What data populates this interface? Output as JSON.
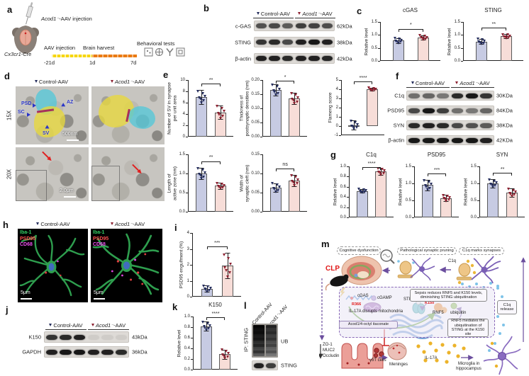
{
  "colors": {
    "control_fill": "#c7cbe3",
    "acod1_fill": "#f7ddd8",
    "control_marker": "#232c5c",
    "acod1_marker": "#8c2030"
  },
  "groups": {
    "control": "Control-AAV",
    "acod1_italic": "Acod1⁻",
    "acod1_rest": "-AAV"
  },
  "panel_a": {
    "letter": "a",
    "injection_italic": "Acod1⁻",
    "injection_rest": "-AAV injection",
    "cx3cr1_italic": "Cx3cr1",
    "cx3cr1_rest": "-Cre",
    "timeline_events": [
      "AAV injection",
      "Brain harvest",
      "Behavioral tests"
    ],
    "timeline_times": [
      "-21d",
      "1d",
      "7d"
    ]
  },
  "panel_b": {
    "letter": "b",
    "rows": [
      {
        "label": "c-GAS",
        "kda": "62kDa"
      },
      {
        "label": "STING",
        "kda": "38kDa"
      },
      {
        "label": "β-actin",
        "kda": "42kDa"
      }
    ]
  },
  "panel_c": {
    "letter": "c"
  },
  "panel_d": {
    "letter": "d",
    "row_labels": [
      "15X",
      "20X"
    ],
    "annotations": {
      "psd": "PSD",
      "az": "AZ",
      "sc": "SC",
      "sv": "SV"
    },
    "scale_15x": "500nm",
    "scale_20x": "2.0μm"
  },
  "panel_e": {
    "letter": "e"
  },
  "panel_f": {
    "letter": "f",
    "rows": [
      {
        "label": "C1q",
        "kda": "30KDa"
      },
      {
        "label": "PSD95",
        "kda": "84KDa"
      },
      {
        "label": "SYN",
        "kda": "38KDa"
      },
      {
        "label": "β-actin",
        "kda": "42KDa"
      }
    ]
  },
  "panel_g": {
    "letter": "g"
  },
  "panel_h": {
    "letter": "h",
    "channels": [
      "Iba-1",
      "PSD95",
      "CD68"
    ],
    "scale": "5μm"
  },
  "panel_i": {
    "letter": "i"
  },
  "panel_j": {
    "letter": "j",
    "rows": [
      {
        "label": "K150",
        "kda": "43kDa"
      },
      {
        "label": "GAPDH",
        "kda": "36kDa"
      }
    ]
  },
  "panel_k": {
    "letter": "k"
  },
  "panel_l": {
    "letter": "l",
    "ip_label": "IP: STING",
    "lane1": "Control-AAV",
    "lane2_italic": "Acod1⁻",
    "lane2_rest": "-AAV",
    "ub": "UB",
    "sting": "STING"
  },
  "panel_m": {
    "letter": "m",
    "clp": "CLP",
    "callout_cognitive": "Cognitive dysfunction",
    "callout_pruning": "Pathological synaptic pruning",
    "callout_c1q": "C1q marks synapses",
    "c1q": "C1q",
    "cgas": "cGAS",
    "cgamp": "cGAMP",
    "r366": "R366",
    "sting": "STING",
    "k150": "K150",
    "rnf5": "RNF5",
    "ubiquitin": "ubiquitin",
    "il17a_mito": "IL-17A disrupts mitochondria",
    "acod1_box": "Acod1/4-octyl itaconate",
    "sepsis_note": "Sepsis reduces RNF5 and K150 levels, diminishing STING ubiquitination",
    "rnf5_note": "RNF5 mediates the ubiquitination of STING at the K150 site",
    "c1q_release": "C1q release",
    "barrier": [
      "ZO-1",
      "MUC2",
      "Occludin"
    ],
    "gdt_cells": "γδT cells",
    "meninges": "Meninges",
    "il17a": "IL-17A",
    "microglia": "Microglia in hippocampus"
  },
  "blots": {
    "b": [
      [
        0.7,
        0.75,
        0.65,
        0.8,
        0.78,
        0.72
      ],
      [
        0.85,
        0.9,
        0.75,
        0.95,
        1,
        0.95
      ],
      [
        0.95,
        0.95,
        0.9,
        0.95,
        0.95,
        0.92
      ]
    ],
    "f": [
      [
        0.55,
        0.6,
        0.5,
        0.9,
        1,
        0.85
      ],
      [
        0.75,
        1,
        0.8,
        0.55,
        0.5,
        0.6
      ],
      [
        0.9,
        0.95,
        0.9,
        0.75,
        0.7,
        0.65
      ],
      [
        1,
        1,
        1,
        1,
        1,
        0.95
      ]
    ],
    "j": [
      [
        0.85,
        0.9,
        0.95,
        0.07,
        0.07,
        0.07
      ],
      [
        0.95,
        1,
        1,
        0.95,
        0.95,
        0.9
      ]
    ],
    "l_sting": [
      0.95,
      0.8
    ]
  },
  "chart_data": [
    {
      "id": "c_cgas",
      "type": "bar",
      "title": "cGAS",
      "ylabel": "Relative level",
      "ymin": 0,
      "ymax": 1.5,
      "yticks": [
        0,
        0.5,
        1,
        1.5
      ],
      "ytick_labels": [
        "0.0",
        "0.5",
        "1.0",
        "1.5"
      ],
      "categories": [
        "Control-AAV",
        "Acod1⁻-AAV"
      ],
      "values": [
        0.78,
        0.9
      ],
      "errors": [
        0.1,
        0.09
      ],
      "sig": "*"
    },
    {
      "id": "c_sting",
      "type": "bar",
      "title": "STING",
      "ylabel": "Relative level",
      "ymin": 0,
      "ymax": 1.5,
      "yticks": [
        0,
        0.5,
        1,
        1.5
      ],
      "ytick_labels": [
        "0.0",
        "0.5",
        "1.0",
        "1.5"
      ],
      "categories": [
        "Control-AAV",
        "Acod1⁻-AAV"
      ],
      "values": [
        0.75,
        0.95
      ],
      "errors": [
        0.1,
        0.08
      ],
      "sig": "**"
    },
    {
      "id": "e_sv",
      "type": "bar",
      "title": "",
      "ylabel": "Number of SV in synapse\nper unit area",
      "ymin": 0,
      "ymax": 10,
      "yticks": [
        0,
        2,
        4,
        6,
        8,
        10
      ],
      "ytick_labels": [
        "0",
        "2",
        "4",
        "6",
        "8",
        "10"
      ],
      "categories": [
        "Control-AAV",
        "Acod1⁻-AAV"
      ],
      "values": [
        7.0,
        4.3
      ],
      "errors": [
        1.2,
        1.2
      ],
      "sig": "**"
    },
    {
      "id": "e_thick",
      "type": "bar",
      "title": "",
      "ylabel": "Thickness of\npostsynaptic densities (nm)",
      "ymin": 0,
      "ymax": 0.2,
      "yticks": [
        0,
        0.05,
        0.1,
        0.15,
        0.2
      ],
      "ytick_labels": [
        "0.00",
        "0.05",
        "0.10",
        "0.15",
        "0.20"
      ],
      "categories": [
        "Control-AAV",
        "Acod1⁻-AAV"
      ],
      "values": [
        0.165,
        0.135
      ],
      "errors": [
        0.02,
        0.02
      ],
      "sig": "*"
    },
    {
      "id": "e_flameng",
      "type": "bar",
      "title": "",
      "ylabel": "Flameng score",
      "ymin": -1,
      "ymax": 5,
      "yticks": [
        -1,
        0,
        1,
        2,
        3,
        4,
        5
      ],
      "ytick_labels": [
        "-1",
        "0",
        "1",
        "2",
        "3",
        "4",
        "5"
      ],
      "categories": [
        "Control-AAV",
        "Acod1⁻-AAV"
      ],
      "values": [
        0.1,
        4.0
      ],
      "errors": [
        0.5,
        0.15
      ],
      "sig": "****"
    },
    {
      "id": "e_az",
      "type": "bar",
      "title": "",
      "ylabel": "Length of\nactive zone (nm)",
      "ymin": 0,
      "ymax": 1.5,
      "yticks": [
        0,
        0.5,
        1,
        1.5
      ],
      "ytick_labels": [
        "0.0",
        "0.5",
        "1.0",
        "1.5"
      ],
      "categories": [
        "Control-AAV",
        "Acod1⁻-AAV"
      ],
      "values": [
        1.0,
        0.68
      ],
      "errors": [
        0.15,
        0.08
      ],
      "sig": "**"
    },
    {
      "id": "e_cleft",
      "type": "bar",
      "title": "",
      "ylabel": "Width of\nsynaptic cleft (nm)",
      "ymin": 0,
      "ymax": 0.15,
      "yticks": [
        0,
        0.05,
        0.1,
        0.15
      ],
      "ytick_labels": [
        "0.00",
        "0.05",
        "0.10",
        "0.15"
      ],
      "categories": [
        "Control-AAV",
        "Acod1⁻-AAV"
      ],
      "values": [
        0.063,
        0.082
      ],
      "errors": [
        0.012,
        0.015
      ],
      "sig": "ns"
    },
    {
      "id": "g_c1q",
      "type": "bar",
      "title": "C1q",
      "ylabel": "Relative level",
      "ymin": 0,
      "ymax": 1.0,
      "yticks": [
        0,
        0.2,
        0.4,
        0.6,
        0.8,
        1
      ],
      "ytick_labels": [
        "0.0",
        "0.2",
        "0.4",
        "0.6",
        "0.8",
        "1.0"
      ],
      "categories": [
        "Control-AAV",
        "Acod1⁻-AAV"
      ],
      "values": [
        0.52,
        0.9
      ],
      "errors": [
        0.04,
        0.07
      ],
      "sig": "****"
    },
    {
      "id": "g_psd95",
      "type": "bar",
      "title": "PSD95",
      "ylabel": "Relative level",
      "ymin": 0,
      "ymax": 1.5,
      "yticks": [
        0,
        0.5,
        1,
        1.5
      ],
      "ytick_labels": [
        "0.0",
        "0.5",
        "1.0",
        "1.5"
      ],
      "categories": [
        "Control-AAV",
        "Acod1⁻-AAV"
      ],
      "values": [
        0.95,
        0.57
      ],
      "errors": [
        0.15,
        0.1
      ],
      "sig": "***"
    },
    {
      "id": "g_syn",
      "type": "bar",
      "title": "SYN",
      "ylabel": "Relative level",
      "ymin": 0,
      "ymax": 1.5,
      "yticks": [
        0,
        0.5,
        1,
        1.5
      ],
      "ytick_labels": [
        "0.0",
        "0.5",
        "1.0",
        "1.5"
      ],
      "categories": [
        "Control-AAV",
        "Acod1⁻-AAV"
      ],
      "values": [
        1.0,
        0.73
      ],
      "errors": [
        0.12,
        0.12
      ],
      "sig": "**"
    },
    {
      "id": "i_engulf",
      "type": "bar",
      "title": "",
      "ylabel": "PSD95 engulfment (%)",
      "ymin": 0,
      "ymax": 4,
      "yticks": [
        0,
        1,
        2,
        3,
        4
      ],
      "ytick_labels": [
        "0",
        "1",
        "2",
        "3",
        "4"
      ],
      "categories": [
        "Control-AAV",
        "Acod1⁻-AAV"
      ],
      "values": [
        0.5,
        1.95
      ],
      "errors": [
        0.2,
        0.8
      ],
      "sig": "***"
    },
    {
      "id": "k_k150",
      "type": "bar",
      "title": "K150",
      "ylabel": "Relative level",
      "ymin": 0,
      "ymax": 1.0,
      "yticks": [
        0,
        0.2,
        0.4,
        0.6,
        0.8,
        1
      ],
      "ytick_labels": [
        "0.0",
        "0.2",
        "0.4",
        "0.6",
        "0.8",
        "1.0"
      ],
      "categories": [
        "Control-AAV",
        "Acod1⁻-AAV"
      ],
      "values": [
        0.82,
        0.29
      ],
      "errors": [
        0.09,
        0.09
      ],
      "sig": "****"
    }
  ]
}
